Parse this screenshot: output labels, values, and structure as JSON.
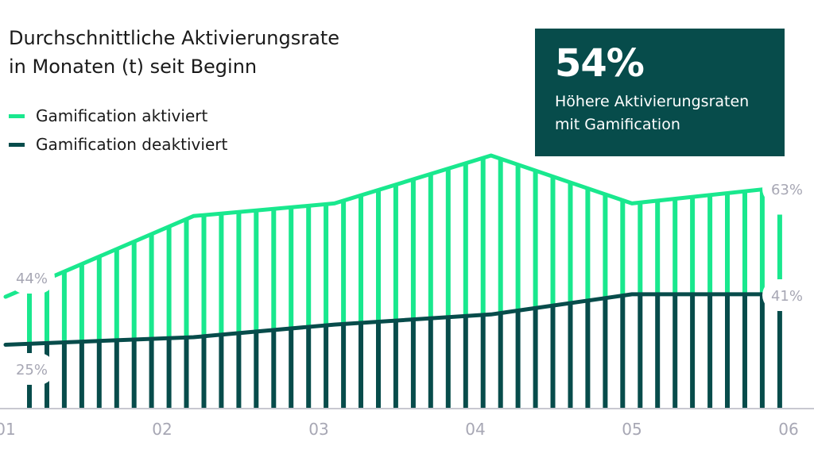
{
  "header": {
    "title_line1": "Durchschnittliche Aktivierungsrate",
    "title_line2": "in Monaten (t) seit Beginn"
  },
  "legend": {
    "items": [
      {
        "label": "Gamification aktiviert",
        "color": "#19e88e"
      },
      {
        "label": "Gamification deaktiviert",
        "color": "#074c4b"
      }
    ]
  },
  "kpi": {
    "value": "54%",
    "line1": "Höhere Aktivierungsraten",
    "line2": "mit Gamification"
  },
  "chart_data": {
    "type": "area",
    "x_ticks": [
      "01",
      "02",
      "03",
      "04",
      "05",
      "06"
    ],
    "y_range": [
      0,
      100
    ],
    "grid": false,
    "legend_position": "top-left",
    "series": [
      {
        "name": "Gamification aktiviert",
        "color": "#19e88e",
        "points": [
          [
            1.0,
            44
          ],
          [
            2.2,
            76
          ],
          [
            3.1,
            81
          ],
          [
            4.1,
            100
          ],
          [
            5.0,
            81
          ],
          [
            5.9,
            87
          ],
          [
            6.0,
            63
          ]
        ]
      },
      {
        "name": "Gamification deaktiviert",
        "color": "#074c4b",
        "points": [
          [
            1.0,
            25
          ],
          [
            2.2,
            28
          ],
          [
            3.1,
            33
          ],
          [
            4.1,
            37
          ],
          [
            5.0,
            45
          ],
          [
            5.9,
            45
          ],
          [
            6.0,
            41
          ]
        ]
      }
    ],
    "start_labels": {
      "active": "44%",
      "inactive": "25%"
    },
    "end_labels": {
      "active": "63%",
      "inactive": "41%"
    }
  }
}
